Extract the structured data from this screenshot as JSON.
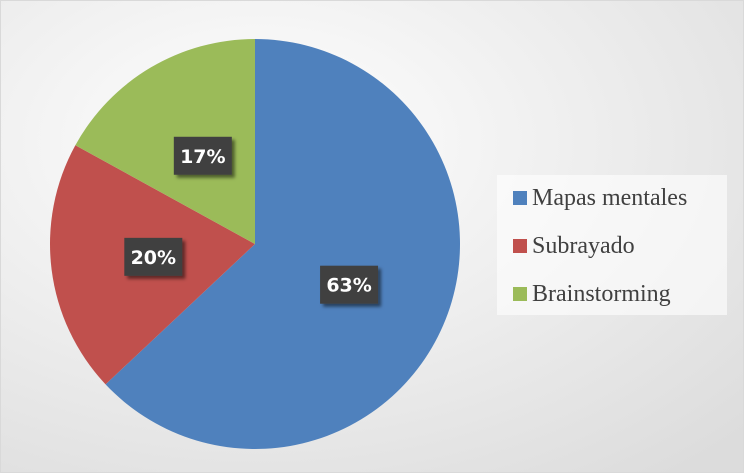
{
  "chart_data": {
    "type": "pie",
    "categories": [
      "Mapas mentales",
      "Subrayado",
      "Brainstorming"
    ],
    "values": [
      63,
      20,
      17
    ],
    "value_labels": [
      "63%",
      "20%",
      "17%"
    ],
    "colors": [
      "#4f81bd",
      "#c0504d",
      "#9bbb59"
    ],
    "legend": "right"
  }
}
